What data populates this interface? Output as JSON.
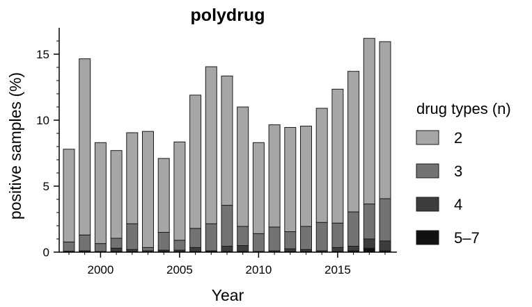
{
  "chart_data": {
    "type": "bar",
    "stacked": true,
    "title": "polydrug",
    "xlabel": "Year",
    "ylabel": "positive samples (%)",
    "ylim": [
      0,
      17
    ],
    "yticks": [
      0,
      5,
      10,
      15
    ],
    "xticks": [
      2000,
      2005,
      2010,
      2015
    ],
    "categories": [
      1998,
      1999,
      2000,
      2001,
      2002,
      2003,
      2004,
      2005,
      2006,
      2007,
      2008,
      2009,
      2010,
      2011,
      2012,
      2013,
      2014,
      2015,
      2016,
      2017,
      2018
    ],
    "legend": {
      "title": "drug types (n)",
      "placement": "right"
    },
    "grid": false,
    "series": [
      {
        "name": "5–7",
        "color": "#111111",
        "values": [
          0.02,
          0.05,
          0.0,
          0.05,
          0.05,
          0.0,
          0.05,
          0.05,
          0.05,
          0.05,
          0.05,
          0.05,
          0.0,
          0.0,
          0.05,
          0.05,
          0.0,
          0.05,
          0.1,
          0.3,
          0.1
        ]
      },
      {
        "name": "4",
        "color": "#3d3d3d",
        "values": [
          0.05,
          0.05,
          0.05,
          0.25,
          0.15,
          0.1,
          0.1,
          0.1,
          0.3,
          0.05,
          0.4,
          0.45,
          0.05,
          0.1,
          0.2,
          0.15,
          0.1,
          0.3,
          0.35,
          0.7,
          0.75
        ]
      },
      {
        "name": "3",
        "color": "#737373",
        "values": [
          0.7,
          1.2,
          0.6,
          0.75,
          1.95,
          0.25,
          1.35,
          0.75,
          1.45,
          2.05,
          3.1,
          1.45,
          1.35,
          1.8,
          1.3,
          1.75,
          2.15,
          1.85,
          2.6,
          2.65,
          3.2
        ]
      },
      {
        "name": "2",
        "color": "#a6a6a6",
        "values": [
          7.03,
          13.35,
          7.65,
          6.65,
          6.9,
          8.8,
          5.6,
          7.45,
          10.1,
          11.9,
          9.8,
          9.05,
          6.9,
          7.75,
          7.9,
          7.6,
          8.65,
          10.15,
          10.65,
          12.55,
          11.9
        ]
      }
    ]
  }
}
